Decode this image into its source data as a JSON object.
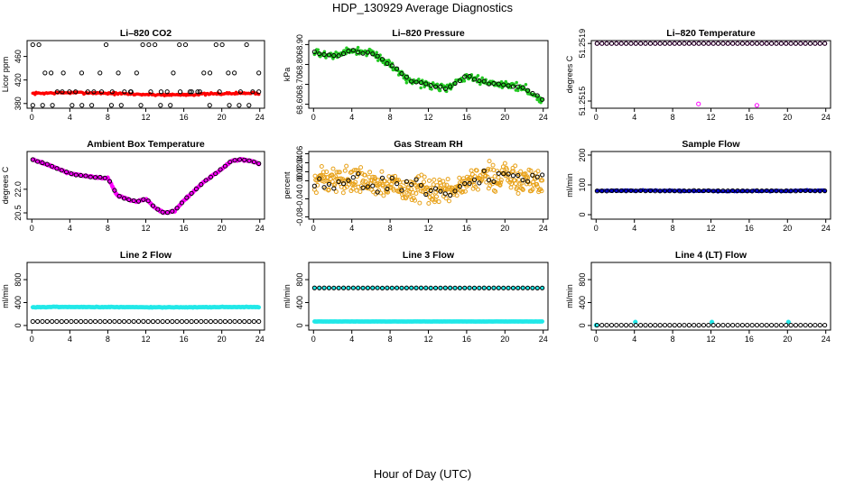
{
  "title": "HDP_130929  Average Diagnostics",
  "xlabel": "Hour of Day (UTC)",
  "chart_data": [
    {
      "type": "scatter",
      "title": "Li–820 CO2",
      "ylabel": "Licor ppm",
      "xlim": [
        -0.5,
        24.5
      ],
      "xticks": [
        "0",
        "4",
        "8",
        "12",
        "16",
        "20",
        "24"
      ],
      "ylim": [
        372,
        487
      ],
      "yticks": [
        "380",
        "420",
        "460"
      ],
      "series": [
        {
          "name": "mean",
          "color": "#ff0000",
          "pattern": "flat",
          "level": 397,
          "amp": 1.5,
          "trend": -1,
          "noise": 2,
          "n": 200,
          "size": 1.6
        },
        {
          "name": "upper",
          "color": "#000000",
          "pattern": "discrete",
          "levels": [
            480,
            432,
            400
          ],
          "probs": [
            0.4,
            0.3,
            0.3
          ],
          "n": 38,
          "size": 2.1,
          "hollow": true
        },
        {
          "name": "lower",
          "color": "#000000",
          "pattern": "discrete",
          "levels": [
            377,
            400
          ],
          "probs": [
            0.6,
            0.4
          ],
          "n": 24,
          "size": 2.1,
          "hollow": true
        }
      ]
    },
    {
      "type": "scatter",
      "title": "Li–820 Pressure",
      "ylabel": "kPa",
      "xlim": [
        -0.5,
        24.5
      ],
      "xticks": [
        "0",
        "4",
        "8",
        "12",
        "16",
        "20",
        "24"
      ],
      "ylim": [
        68.58,
        68.92
      ],
      "yticks": [
        "68.60",
        "68.70",
        "68.80",
        "68.90"
      ],
      "series": [
        {
          "name": "range",
          "color": "#22c922",
          "pattern": "curve",
          "knots": [
            [
              0,
              68.86
            ],
            [
              2,
              68.84
            ],
            [
              4,
              68.87
            ],
            [
              6,
              68.86
            ],
            [
              8,
              68.8
            ],
            [
              10,
              68.72
            ],
            [
              12,
              68.7
            ],
            [
              14,
              68.68
            ],
            [
              16,
              68.74
            ],
            [
              18,
              68.71
            ],
            [
              20,
              68.7
            ],
            [
              22,
              68.68
            ],
            [
              24,
              68.62
            ]
          ],
          "noise": 0.02,
          "n": 320,
          "size": 1.6
        },
        {
          "name": "mean",
          "color": "#000000",
          "pattern": "curve",
          "knots": [
            [
              0,
              68.86
            ],
            [
              2,
              68.84
            ],
            [
              4,
              68.87
            ],
            [
              6,
              68.86
            ],
            [
              8,
              68.8
            ],
            [
              10,
              68.72
            ],
            [
              12,
              68.7
            ],
            [
              14,
              68.68
            ],
            [
              16,
              68.74
            ],
            [
              18,
              68.71
            ],
            [
              20,
              68.7
            ],
            [
              22,
              68.68
            ],
            [
              24,
              68.62
            ]
          ],
          "noise": 0.008,
          "n": 48,
          "size": 2.1,
          "hollow": true
        }
      ]
    },
    {
      "type": "scatter",
      "title": "Li–820 Temperature",
      "ylabel": "degrees C",
      "xlim": [
        -0.5,
        24.5
      ],
      "xticks": [
        "0",
        "4",
        "8",
        "12",
        "16",
        "20",
        "24"
      ],
      "ylim": [
        51.25145,
        51.25192
      ],
      "yticks": [
        "51.2515",
        "51.2519"
      ],
      "series": [
        {
          "name": "range",
          "color": "#ff00ff",
          "pattern": "flat",
          "level": 51.2519,
          "amp": 0,
          "trend": 0,
          "noise": 0,
          "n": 48,
          "size": 2.1,
          "hollow": true
        },
        {
          "name": "mean",
          "color": "#000000",
          "pattern": "flat",
          "level": 51.2519,
          "amp": 0,
          "trend": 0,
          "noise": 0,
          "n": 48,
          "size": 2.1,
          "hollow": true
        },
        {
          "name": "low",
          "color": "#ff00ff",
          "pattern": "points",
          "points": [
            [
              10.7,
              51.25148
            ],
            [
              16.8,
              51.25147
            ]
          ],
          "size": 2.1,
          "hollow": true
        }
      ]
    },
    {
      "type": "scatter",
      "title": "Ambient Box Temperature",
      "ylabel": "degrees C",
      "xlim": [
        -0.5,
        24.5
      ],
      "xticks": [
        "0",
        "4",
        "8",
        "12",
        "16",
        "20",
        "24"
      ],
      "ylim": [
        20.1,
        24.4
      ],
      "yticks": [
        "20.5",
        "22.0"
      ],
      "series": [
        {
          "name": "range",
          "color": "#ff00ff",
          "pattern": "curve",
          "knots": [
            [
              0,
              23.9
            ],
            [
              2,
              23.5
            ],
            [
              4,
              23.0
            ],
            [
              6,
              22.8
            ],
            [
              8,
              22.7
            ],
            [
              9,
              21.6
            ],
            [
              10,
              21.4
            ],
            [
              11,
              21.2
            ],
            [
              12,
              21.4
            ],
            [
              13,
              20.8
            ],
            [
              14,
              20.5
            ],
            [
              15,
              20.6
            ],
            [
              16,
              21.3
            ],
            [
              18,
              22.4
            ],
            [
              20,
              23.3
            ],
            [
              21,
              23.8
            ],
            [
              22,
              23.9
            ],
            [
              23,
              23.8
            ],
            [
              24,
              23.6
            ]
          ],
          "noise": 0.05,
          "n": 200,
          "size": 2.2
        },
        {
          "name": "mean",
          "color": "#000000",
          "pattern": "curve",
          "knots": [
            [
              0,
              23.9
            ],
            [
              2,
              23.5
            ],
            [
              4,
              23.0
            ],
            [
              6,
              22.8
            ],
            [
              8,
              22.7
            ],
            [
              9,
              21.6
            ],
            [
              10,
              21.4
            ],
            [
              11,
              21.2
            ],
            [
              12,
              21.4
            ],
            [
              13,
              20.8
            ],
            [
              14,
              20.5
            ],
            [
              15,
              20.6
            ],
            [
              16,
              21.3
            ],
            [
              18,
              22.4
            ],
            [
              20,
              23.3
            ],
            [
              21,
              23.8
            ],
            [
              22,
              23.9
            ],
            [
              23,
              23.8
            ],
            [
              24,
              23.6
            ]
          ],
          "noise": 0.03,
          "n": 48,
          "size": 2.1,
          "hollow": true
        }
      ]
    },
    {
      "type": "scatter",
      "title": "Gas Stream RH",
      "ylabel": "percent",
      "xlim": [
        -0.5,
        24.5
      ],
      "xticks": [
        "0",
        "4",
        "8",
        "12",
        "16",
        "20",
        "24"
      ],
      "ylim": [
        -0.085,
        0.065
      ],
      "yticks": [
        "-0.08",
        "-0.04",
        "0.00",
        "0.02",
        "0.04",
        "0.06"
      ],
      "series": [
        {
          "name": "range",
          "color": "#e8a21a",
          "pattern": "curve",
          "knots": [
            [
              0,
              0.0
            ],
            [
              4,
              0.0
            ],
            [
              8,
              -0.01
            ],
            [
              12,
              -0.02
            ],
            [
              14,
              -0.03
            ],
            [
              16,
              0.0
            ],
            [
              18,
              0.01
            ],
            [
              20,
              0.01
            ],
            [
              24,
              0.0
            ]
          ],
          "noise": 0.03,
          "n": 380,
          "size": 2.0,
          "hollow": true
        },
        {
          "name": "mean",
          "color": "#000000",
          "pattern": "curve",
          "knots": [
            [
              0,
              0.0
            ],
            [
              4,
              0.0
            ],
            [
              8,
              -0.01
            ],
            [
              12,
              -0.02
            ],
            [
              14,
              -0.03
            ],
            [
              16,
              0.0
            ],
            [
              18,
              0.01
            ],
            [
              20,
              0.01
            ],
            [
              24,
              0.0
            ]
          ],
          "noise": 0.02,
          "n": 48,
          "size": 2.1,
          "hollow": true
        }
      ]
    },
    {
      "type": "scatter",
      "title": "Sample Flow",
      "ylabel": "ml/min",
      "xlim": [
        -0.5,
        24.5
      ],
      "xticks": [
        "0",
        "4",
        "8",
        "12",
        "16",
        "20",
        "24"
      ],
      "ylim": [
        -15,
        212
      ],
      "yticks": [
        "0",
        "100",
        "200"
      ],
      "series": [
        {
          "name": "range",
          "color": "#0000cc",
          "pattern": "flat",
          "level": 80,
          "amp": 1,
          "trend": 0,
          "noise": 2.5,
          "n": 180,
          "size": 1.8
        },
        {
          "name": "mean",
          "color": "#000000",
          "pattern": "flat",
          "level": 80,
          "amp": 0,
          "trend": 0,
          "noise": 1,
          "n": 48,
          "size": 2.1,
          "hollow": true
        }
      ]
    },
    {
      "type": "scatter",
      "title": "Line 2 Flow",
      "ylabel": "ml/min",
      "xlim": [
        -0.5,
        24.5
      ],
      "xticks": [
        "0",
        "4",
        "8",
        "12",
        "16",
        "20",
        "24"
      ],
      "ylim": [
        -80,
        1100
      ],
      "yticks": [
        "0",
        "400",
        "800"
      ],
      "series": [
        {
          "name": "line2",
          "color": "#22e8e8",
          "pattern": "flat",
          "level": 320,
          "amp": 3,
          "trend": 0,
          "noise": 6,
          "n": 200,
          "size": 2.2
        },
        {
          "name": "mean",
          "color": "#000000",
          "pattern": "flat",
          "level": 70,
          "amp": 0,
          "trend": 0,
          "noise": 1,
          "n": 48,
          "size": 2.1,
          "hollow": true
        }
      ]
    },
    {
      "type": "scatter",
      "title": "Line 3 Flow",
      "ylabel": "ml/min",
      "xlim": [
        -0.5,
        24.5
      ],
      "xticks": [
        "0",
        "4",
        "8",
        "12",
        "16",
        "20",
        "24"
      ],
      "ylim": [
        -80,
        1100
      ],
      "yticks": [
        "0",
        "400",
        "800"
      ],
      "series": [
        {
          "name": "low",
          "color": "#22e8e8",
          "pattern": "flat",
          "level": 70,
          "amp": 0,
          "trend": 0,
          "noise": 2,
          "n": 200,
          "size": 2.2
        },
        {
          "name": "high",
          "color": "#22e8e8",
          "pattern": "flat",
          "level": 655,
          "amp": 0,
          "trend": 0,
          "noise": 3,
          "n": 48,
          "size": 2.2
        },
        {
          "name": "mean",
          "color": "#000000",
          "pattern": "flat",
          "level": 655,
          "amp": 0,
          "trend": 0,
          "noise": 2,
          "n": 48,
          "size": 2.1,
          "hollow": true
        }
      ]
    },
    {
      "type": "scatter",
      "title": "Line 4 (LT) Flow",
      "ylabel": "ml/min",
      "xlim": [
        -0.5,
        24.5
      ],
      "xticks": [
        "0",
        "4",
        "8",
        "12",
        "16",
        "20",
        "24"
      ],
      "ylim": [
        -80,
        1100
      ],
      "yticks": [
        "0",
        "400",
        "800"
      ],
      "series": [
        {
          "name": "range",
          "color": "#22e8e8",
          "pattern": "points",
          "points": [
            [
              0,
              5
            ],
            [
              4.1,
              60
            ],
            [
              12.1,
              60
            ],
            [
              20.1,
              60
            ]
          ],
          "size": 2.4
        },
        {
          "name": "mean",
          "color": "#000000",
          "pattern": "flat",
          "level": 5,
          "amp": 0,
          "trend": 0,
          "noise": 1,
          "n": 48,
          "size": 2.1,
          "hollow": true
        }
      ]
    }
  ]
}
